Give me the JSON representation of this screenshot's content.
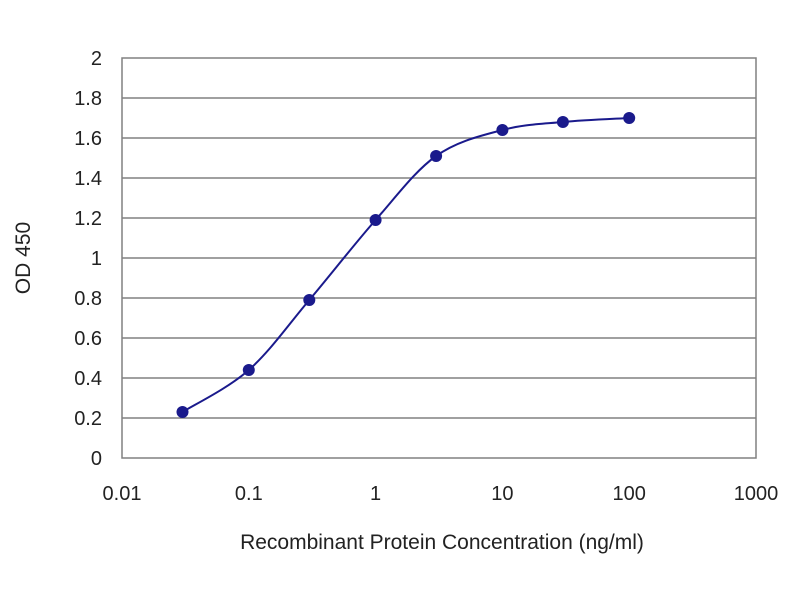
{
  "chart_data": {
    "type": "line",
    "xscale": "log",
    "xlabel": "Recombinant Protein Concentration (ng/ml)",
    "ylabel": "OD 450",
    "xlim": [
      0.01,
      1000
    ],
    "ylim": [
      0,
      2
    ],
    "x_ticks": [
      0.01,
      0.1,
      1,
      10,
      100,
      1000
    ],
    "x_tick_labels": [
      "0.01",
      "0.1",
      "1",
      "10",
      "100",
      "1000"
    ],
    "y_ticks": [
      0,
      0.2,
      0.4,
      0.6,
      0.8,
      1,
      1.2,
      1.4,
      1.6,
      1.8,
      2
    ],
    "y_tick_labels": [
      "0",
      "0.2",
      "0.4",
      "0.6",
      "0.8",
      "1",
      "1.2",
      "1.4",
      "1.6",
      "1.8",
      "2"
    ],
    "grid": "horizontal",
    "colors": {
      "series": "#1a1a8c",
      "grid": "#808080",
      "plot_border": "#808080"
    },
    "series": [
      {
        "x": [
          0.03,
          0.1,
          0.3,
          1,
          3,
          10,
          30,
          100
        ],
        "y": [
          0.23,
          0.44,
          0.79,
          1.19,
          1.51,
          1.64,
          1.68,
          1.7
        ]
      }
    ]
  }
}
